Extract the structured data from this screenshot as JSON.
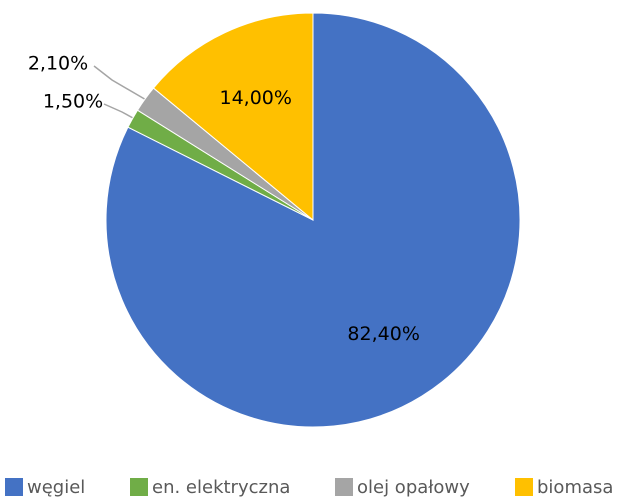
{
  "chart_data": {
    "type": "pie",
    "categories": [
      "węgiel",
      "en. elektryczna",
      "olej opałowy",
      "biomasa"
    ],
    "values": [
      82.4,
      1.5,
      2.1,
      14.0
    ],
    "value_labels": [
      "82,40%",
      "1,50%",
      "2,10%",
      "14,00%"
    ],
    "colors": [
      "#4472c4",
      "#70ad47",
      "#a5a5a5",
      "#ffc000"
    ],
    "legend": "bottom"
  }
}
